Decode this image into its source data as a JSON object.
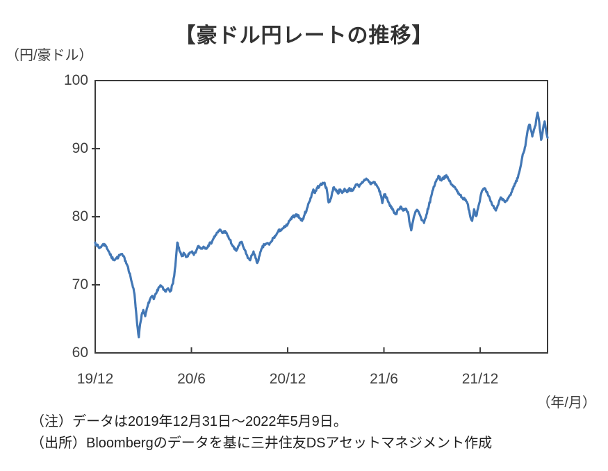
{
  "chart_data": {
    "type": "line",
    "title": "【豪ドル円レートの推移】",
    "y_unit_label": "（円/豪ドル）",
    "x_unit_label": "（年/月）",
    "xlabel": "年/月",
    "ylabel": "円/豪ドル",
    "ylim": [
      60,
      100
    ],
    "xlim_months_from_2019_12": [
      0,
      28.2
    ],
    "grid": false,
    "legend": "none",
    "y_ticks": [
      {
        "value": 100,
        "label": "100"
      },
      {
        "value": 90,
        "label": "90"
      },
      {
        "value": 80,
        "label": "80"
      },
      {
        "value": 70,
        "label": "70"
      },
      {
        "value": 60,
        "label": "60"
      }
    ],
    "x_ticks": [
      {
        "month": 0,
        "label": "19/12"
      },
      {
        "month": 6,
        "label": "20/6"
      },
      {
        "month": 12,
        "label": "20/12"
      },
      {
        "month": 18,
        "label": "21/6"
      },
      {
        "month": 24,
        "label": "21/12"
      }
    ],
    "series": [
      {
        "name": "豪ドル円レート",
        "color": "#4277b5",
        "x_unit": "months since 2019/12/31",
        "points": [
          [
            0,
            76.2
          ],
          [
            0.12,
            75.8
          ],
          [
            0.25,
            75.4
          ],
          [
            0.4,
            75.7
          ],
          [
            0.55,
            76.0
          ],
          [
            0.7,
            75.6
          ],
          [
            0.85,
            74.9
          ],
          [
            1.0,
            74.1
          ],
          [
            1.15,
            73.7
          ],
          [
            1.3,
            73.9
          ],
          [
            1.45,
            74.1
          ],
          [
            1.6,
            74.5
          ],
          [
            1.75,
            74.2
          ],
          [
            1.9,
            73.5
          ],
          [
            2.05,
            72.6
          ],
          [
            2.2,
            71.2
          ],
          [
            2.32,
            70.0
          ],
          [
            2.45,
            68.6
          ],
          [
            2.55,
            66.0
          ],
          [
            2.65,
            63.6
          ],
          [
            2.72,
            62.3
          ],
          [
            2.8,
            64.2
          ],
          [
            2.9,
            65.6
          ],
          [
            3.0,
            66.3
          ],
          [
            3.12,
            65.4
          ],
          [
            3.25,
            66.7
          ],
          [
            3.4,
            67.8
          ],
          [
            3.52,
            68.3
          ],
          [
            3.65,
            67.9
          ],
          [
            3.8,
            68.7
          ],
          [
            3.95,
            69.6
          ],
          [
            4.1,
            69.9
          ],
          [
            4.25,
            69.3
          ],
          [
            4.4,
            69.0
          ],
          [
            4.55,
            69.5
          ],
          [
            4.7,
            69.1
          ],
          [
            4.85,
            70.2
          ],
          [
            5.0,
            72.8
          ],
          [
            5.12,
            76.2
          ],
          [
            5.25,
            75.0
          ],
          [
            5.4,
            74.2
          ],
          [
            5.55,
            74.6
          ],
          [
            5.7,
            74.1
          ],
          [
            5.85,
            74.5
          ],
          [
            6.0,
            74.8
          ],
          [
            6.15,
            74.4
          ],
          [
            6.3,
            75.0
          ],
          [
            6.45,
            75.7
          ],
          [
            6.6,
            75.3
          ],
          [
            6.75,
            75.6
          ],
          [
            6.9,
            75.4
          ],
          [
            7.05,
            75.8
          ],
          [
            7.2,
            76.1
          ],
          [
            7.35,
            76.7
          ],
          [
            7.5,
            77.3
          ],
          [
            7.65,
            77.7
          ],
          [
            7.8,
            78.1
          ],
          [
            7.95,
            77.6
          ],
          [
            8.1,
            77.9
          ],
          [
            8.25,
            77.2
          ],
          [
            8.4,
            76.6
          ],
          [
            8.55,
            75.8
          ],
          [
            8.7,
            75.2
          ],
          [
            8.8,
            75.0
          ],
          [
            8.95,
            75.8
          ],
          [
            9.1,
            76.3
          ],
          [
            9.25,
            75.5
          ],
          [
            9.4,
            74.6
          ],
          [
            9.55,
            73.9
          ],
          [
            9.66,
            73.6
          ],
          [
            9.78,
            74.4
          ],
          [
            9.87,
            74.9
          ],
          [
            10.0,
            73.9
          ],
          [
            10.1,
            73.2
          ],
          [
            10.25,
            74.3
          ],
          [
            10.4,
            75.4
          ],
          [
            10.55,
            75.9
          ],
          [
            10.7,
            76.1
          ],
          [
            10.85,
            75.9
          ],
          [
            11.0,
            76.4
          ],
          [
            11.1,
            76.9
          ],
          [
            11.25,
            77.2
          ],
          [
            11.4,
            77.8
          ],
          [
            11.55,
            78.1
          ],
          [
            11.7,
            78.3
          ],
          [
            11.85,
            78.5
          ],
          [
            12.0,
            78.9
          ],
          [
            12.15,
            79.5
          ],
          [
            12.3,
            79.9
          ],
          [
            12.45,
            80.2
          ],
          [
            12.6,
            80.3
          ],
          [
            12.75,
            79.8
          ],
          [
            12.9,
            79.4
          ],
          [
            13.05,
            80.3
          ],
          [
            13.2,
            81.2
          ],
          [
            13.35,
            82.2
          ],
          [
            13.5,
            83.3
          ],
          [
            13.6,
            84.0
          ],
          [
            13.7,
            83.5
          ],
          [
            13.85,
            84.3
          ],
          [
            14.0,
            84.6
          ],
          [
            14.15,
            84.8
          ],
          [
            14.3,
            85.0
          ],
          [
            14.45,
            83.8
          ],
          [
            14.55,
            82.1
          ],
          [
            14.7,
            82.7
          ],
          [
            14.85,
            84.3
          ],
          [
            15.0,
            84.0
          ],
          [
            15.12,
            83.5
          ],
          [
            15.25,
            83.9
          ],
          [
            15.4,
            83.5
          ],
          [
            15.55,
            84.1
          ],
          [
            15.7,
            83.6
          ],
          [
            15.85,
            84.2
          ],
          [
            16.0,
            83.8
          ],
          [
            16.15,
            84.3
          ],
          [
            16.3,
            84.7
          ],
          [
            16.45,
            84.4
          ],
          [
            16.6,
            84.9
          ],
          [
            16.75,
            85.3
          ],
          [
            16.9,
            85.6
          ],
          [
            17.05,
            85.2
          ],
          [
            17.2,
            84.8
          ],
          [
            17.35,
            85.1
          ],
          [
            17.5,
            84.8
          ],
          [
            17.62,
            84.3
          ],
          [
            17.75,
            83.7
          ],
          [
            17.9,
            82.0
          ],
          [
            18.02,
            83.3
          ],
          [
            18.15,
            82.9
          ],
          [
            18.3,
            82.1
          ],
          [
            18.45,
            81.3
          ],
          [
            18.6,
            80.8
          ],
          [
            18.75,
            80.4
          ],
          [
            18.9,
            81.1
          ],
          [
            19.05,
            81.5
          ],
          [
            19.2,
            80.9
          ],
          [
            19.35,
            81.2
          ],
          [
            19.5,
            80.7
          ],
          [
            19.62,
            78.9
          ],
          [
            19.7,
            78.0
          ],
          [
            19.82,
            79.4
          ],
          [
            19.95,
            80.6
          ],
          [
            20.08,
            81.0
          ],
          [
            20.2,
            80.5
          ],
          [
            20.35,
            79.5
          ],
          [
            20.5,
            79.1
          ],
          [
            20.65,
            80.3
          ],
          [
            20.8,
            81.6
          ],
          [
            20.95,
            83.0
          ],
          [
            21.1,
            84.4
          ],
          [
            21.25,
            85.2
          ],
          [
            21.4,
            86.0
          ],
          [
            21.55,
            85.4
          ],
          [
            21.7,
            85.7
          ],
          [
            21.85,
            86.0
          ],
          [
            22.0,
            85.6
          ],
          [
            22.15,
            85.0
          ],
          [
            22.3,
            84.5
          ],
          [
            22.45,
            84.2
          ],
          [
            22.6,
            83.7
          ],
          [
            22.75,
            83.2
          ],
          [
            22.9,
            82.8
          ],
          [
            23.05,
            82.5
          ],
          [
            23.2,
            82.0
          ],
          [
            23.32,
            80.9
          ],
          [
            23.42,
            79.7
          ],
          [
            23.5,
            79.4
          ],
          [
            23.62,
            81.1
          ],
          [
            23.75,
            80.1
          ],
          [
            23.9,
            81.6
          ],
          [
            24.05,
            83.3
          ],
          [
            24.2,
            84.1
          ],
          [
            24.35,
            83.9
          ],
          [
            24.5,
            83.1
          ],
          [
            24.65,
            82.3
          ],
          [
            24.8,
            81.6
          ],
          [
            24.95,
            81.0
          ],
          [
            25.05,
            81.3
          ],
          [
            25.2,
            82.4
          ],
          [
            25.32,
            82.8
          ],
          [
            25.45,
            82.5
          ],
          [
            25.6,
            82.3
          ],
          [
            25.75,
            82.7
          ],
          [
            25.9,
            83.2
          ],
          [
            26.05,
            84.1
          ],
          [
            26.2,
            84.9
          ],
          [
            26.35,
            85.7
          ],
          [
            26.5,
            87.2
          ],
          [
            26.62,
            88.7
          ],
          [
            26.72,
            89.5
          ],
          [
            26.82,
            90.4
          ],
          [
            26.92,
            92.1
          ],
          [
            27.02,
            93.3
          ],
          [
            27.1,
            93.5
          ],
          [
            27.18,
            92.6
          ],
          [
            27.25,
            91.8
          ],
          [
            27.35,
            92.8
          ],
          [
            27.45,
            93.4
          ],
          [
            27.52,
            94.6
          ],
          [
            27.58,
            95.3
          ],
          [
            27.65,
            94.4
          ],
          [
            27.72,
            92.9
          ],
          [
            27.8,
            91.3
          ],
          [
            27.88,
            92.2
          ],
          [
            27.96,
            93.5
          ],
          [
            28.02,
            94.0
          ],
          [
            28.08,
            93.1
          ],
          [
            28.14,
            92.2
          ],
          [
            28.2,
            91.6
          ]
        ]
      }
    ]
  },
  "notes": {
    "note": "（注）データは2019年12月31日～2022年5月9日。",
    "source": "（出所）Bloombergのデータを基に三井住友DSアセットマネジメント作成"
  },
  "colors": {
    "line": "#4277b5",
    "axis": "#3b3b3b",
    "tick_text": "#404040",
    "title_text": "#333333",
    "background": "#ffffff"
  }
}
